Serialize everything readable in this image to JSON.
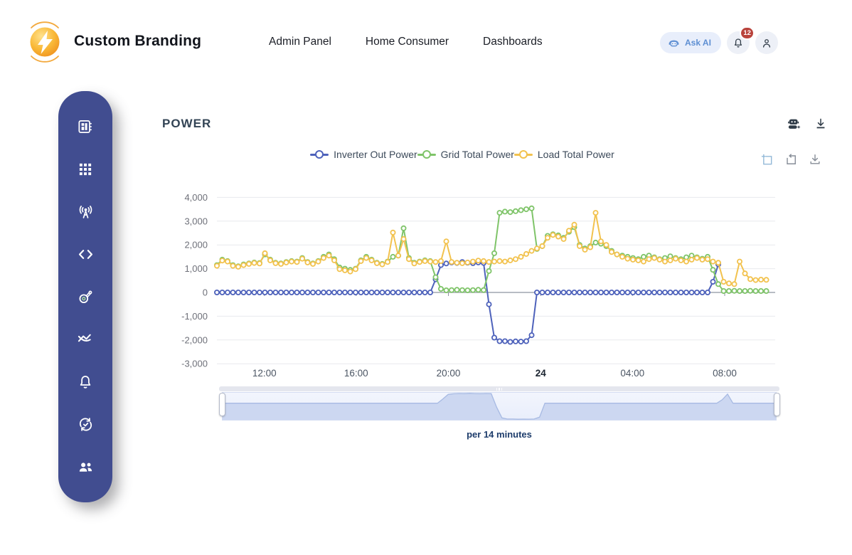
{
  "header": {
    "brand": "Custom Branding",
    "nav": [
      "Admin Panel",
      "Home Consumer",
      "Dashboards"
    ],
    "ask_ai_label": "Ask AI",
    "notification_count": "12"
  },
  "sidebar": {
    "items": [
      "dashboard-panel",
      "apps-grid",
      "broadcast-antenna",
      "code",
      "meter",
      "trend-lines",
      "notifications-bell",
      "sync-check",
      "users"
    ]
  },
  "main": {
    "title": "POWER",
    "caption": "per 14 minutes"
  },
  "colors": {
    "sidebar": "#414d90",
    "inverter": "#4e62bb",
    "grid": "#7fc469",
    "load": "#f2c24e",
    "gridline": "#e8e9ee",
    "zero_axis": "#8e93a0",
    "y_label": "#6e7079",
    "x_label": "#4b5563",
    "badge": "#b9433c",
    "ask_ai_blue": "#5e8fd3"
  },
  "chart_data": {
    "type": "line",
    "title": "POWER",
    "interval_label": "per 14 minutes",
    "x_axis": {
      "start_time": "09:56",
      "interval_minutes": 14,
      "point_count": 104,
      "ticks": [
        {
          "label": "12:00",
          "i": 8.9,
          "bold": false
        },
        {
          "label": "16:00",
          "i": 26.1,
          "bold": false
        },
        {
          "label": "20:00",
          "i": 43.4,
          "bold": false
        },
        {
          "label": "24",
          "i": 60.7,
          "bold": true
        },
        {
          "label": "04:00",
          "i": 77.9,
          "bold": false
        },
        {
          "label": "08:00",
          "i": 95.2,
          "bold": false
        }
      ]
    },
    "y_axis": {
      "min": -3000,
      "max": 4000,
      "step": 1000,
      "ticks": [
        {
          "value": 4000,
          "label": "4,000"
        },
        {
          "value": 3000,
          "label": "3,000"
        },
        {
          "value": 2000,
          "label": "2,000"
        },
        {
          "value": 1000,
          "label": "1,000"
        },
        {
          "value": 0,
          "label": "0"
        },
        {
          "value": -1000,
          "label": "-1,000"
        },
        {
          "value": -2000,
          "label": "-2,000"
        },
        {
          "value": -3000,
          "label": "-3,000"
        }
      ]
    },
    "legend_position": "top-center",
    "grid": true,
    "series": [
      {
        "name": "Inverter Out Power",
        "color": "#4e62bb",
        "values": [
          0,
          0,
          0,
          0,
          0,
          0,
          0,
          0,
          0,
          0,
          0,
          0,
          0,
          0,
          0,
          0,
          0,
          0,
          0,
          0,
          0,
          0,
          0,
          0,
          0,
          0,
          0,
          0,
          0,
          0,
          0,
          0,
          0,
          0,
          0,
          0,
          0,
          0,
          0,
          0,
          0,
          550,
          1150,
          1220,
          1260,
          1240,
          1280,
          1250,
          1230,
          1260,
          1240,
          -500,
          -1900,
          -2050,
          -2050,
          -2080,
          -2060,
          -2070,
          -2050,
          -1800,
          0,
          0,
          0,
          0,
          0,
          0,
          0,
          0,
          0,
          0,
          0,
          0,
          0,
          0,
          0,
          0,
          0,
          0,
          0,
          0,
          0,
          0,
          0,
          0,
          0,
          0,
          0,
          0,
          0,
          0,
          0,
          0,
          0,
          450,
          1180
        ]
      },
      {
        "name": "Grid Total Power",
        "color": "#7fc469",
        "values": [
          1150,
          1380,
          1320,
          1150,
          1100,
          1180,
          1220,
          1260,
          1240,
          1600,
          1380,
          1250,
          1220,
          1280,
          1320,
          1300,
          1450,
          1280,
          1220,
          1320,
          1500,
          1600,
          1400,
          1050,
          1000,
          950,
          1000,
          1350,
          1500,
          1380,
          1250,
          1200,
          1300,
          1500,
          1550,
          2700,
          1450,
          1250,
          1300,
          1350,
          1320,
          640,
          150,
          90,
          100,
          110,
          100,
          90,
          100,
          110,
          100,
          900,
          1650,
          3350,
          3400,
          3380,
          3420,
          3460,
          3500,
          3540,
          1830,
          1950,
          2380,
          2450,
          2400,
          2300,
          2550,
          2750,
          2000,
          1850,
          1950,
          2100,
          2050,
          1950,
          1750,
          1600,
          1550,
          1500,
          1450,
          1400,
          1500,
          1550,
          1480,
          1400,
          1450,
          1520,
          1450,
          1400,
          1480,
          1550,
          1480,
          1420,
          1500,
          950,
          350,
          60,
          60,
          70,
          60,
          60,
          70,
          60,
          60,
          60
        ]
      },
      {
        "name": "Load Total Power",
        "color": "#f2c24e",
        "values": [
          1120,
          1340,
          1300,
          1120,
          1080,
          1150,
          1200,
          1240,
          1220,
          1650,
          1350,
          1230,
          1200,
          1260,
          1300,
          1280,
          1420,
          1260,
          1200,
          1300,
          1450,
          1550,
          1350,
          980,
          930,
          880,
          980,
          1320,
          1450,
          1350,
          1230,
          1180,
          1280,
          2520,
          1550,
          2250,
          1400,
          1220,
          1280,
          1320,
          1300,
          1280,
          1320,
          2150,
          1280,
          1250,
          1230,
          1260,
          1300,
          1340,
          1320,
          1280,
          1300,
          1320,
          1300,
          1350,
          1400,
          1500,
          1620,
          1750,
          1850,
          1950,
          2300,
          2420,
          2350,
          2250,
          2600,
          2850,
          1950,
          1800,
          1900,
          3350,
          2150,
          2000,
          1700,
          1600,
          1500,
          1420,
          1380,
          1350,
          1300,
          1400,
          1450,
          1380,
          1300,
          1350,
          1420,
          1350,
          1300,
          1380,
          1450,
          1380,
          1400,
          1300,
          1250,
          450,
          380,
          350,
          1300,
          800,
          560,
          520,
          540,
          530
        ]
      }
    ],
    "datazoom": {
      "preview_series": "Inverter Out Power",
      "range": "full"
    }
  }
}
